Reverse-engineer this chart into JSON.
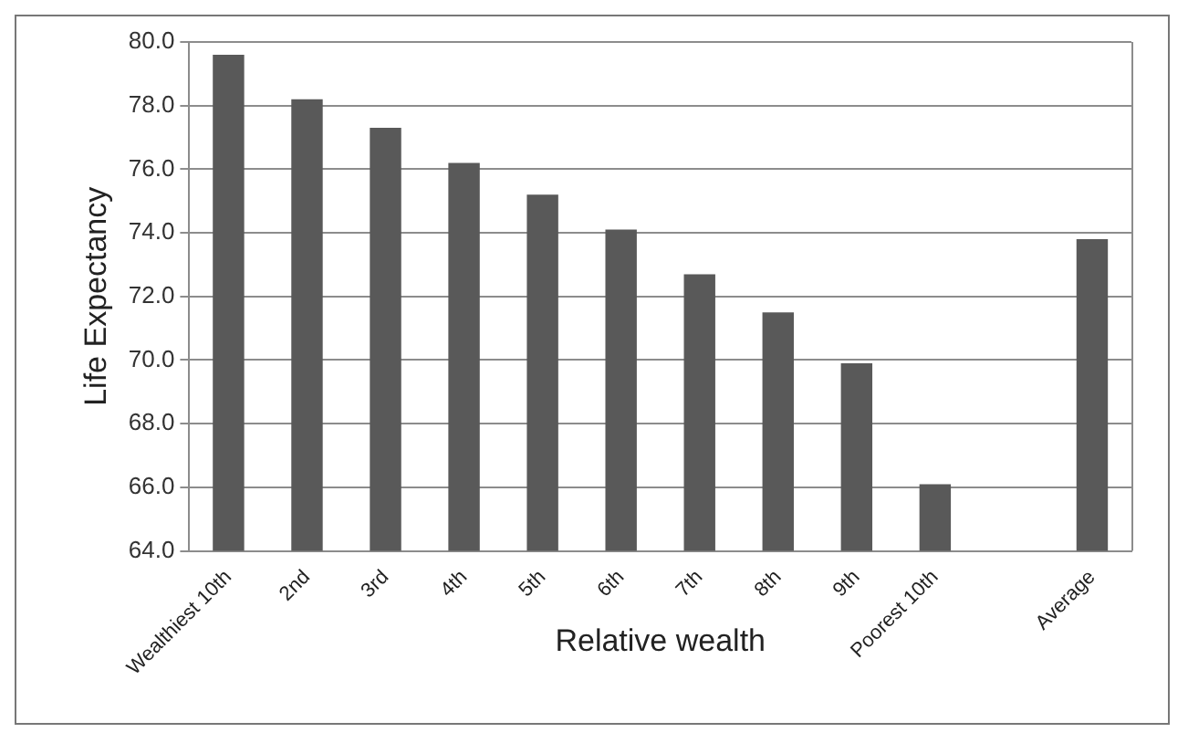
{
  "chart_data": {
    "type": "bar",
    "xlabel": "Relative wealth",
    "ylabel": "Life Expectancy",
    "categories": [
      "Wealthiest 10th",
      "2nd",
      "3rd",
      "4th",
      "5th",
      "6th",
      "7th",
      "8th",
      "9th",
      "Poorest 10th",
      null,
      "Average"
    ],
    "values": [
      79.6,
      78.2,
      77.3,
      76.2,
      75.2,
      74.1,
      72.7,
      71.5,
      69.9,
      66.1,
      null,
      73.8
    ],
    "color": "#595959",
    "ylim": [
      64,
      80
    ],
    "yticks": [
      {
        "value": 64,
        "label": "64.0"
      },
      {
        "value": 66,
        "label": "66.0"
      },
      {
        "value": 68,
        "label": "68.0"
      },
      {
        "value": 70,
        "label": "70.0"
      },
      {
        "value": 72,
        "label": "72.0"
      },
      {
        "value": 74,
        "label": "74.0"
      },
      {
        "value": 76,
        "label": "76.0"
      },
      {
        "value": 78,
        "label": "78.0"
      },
      {
        "value": 80,
        "label": "80.0"
      }
    ],
    "grid": "y",
    "legend": false
  }
}
